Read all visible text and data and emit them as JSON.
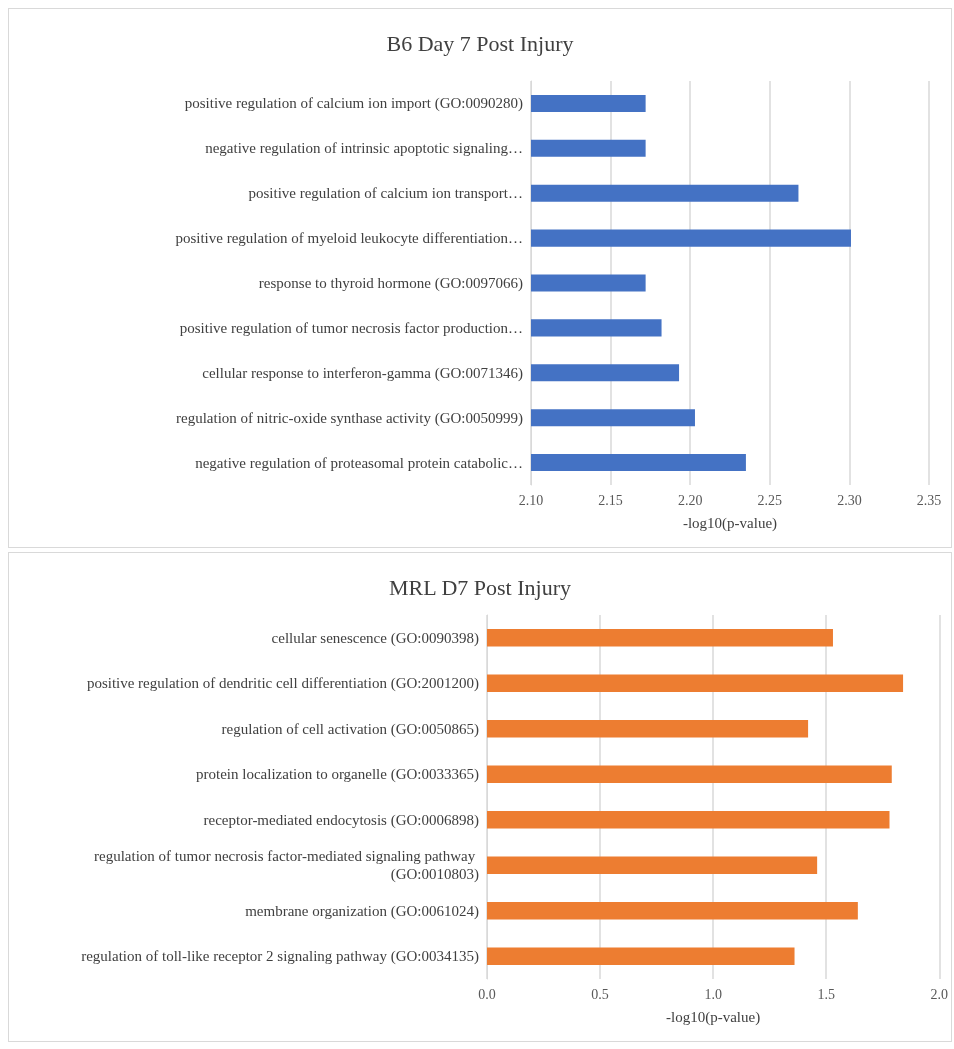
{
  "chart_data": [
    {
      "type": "bar",
      "orientation": "horizontal",
      "title": "B6 Day 7 Post Injury",
      "xlabel": "-log10(p-value)",
      "categories": [
        "positive regulation of calcium ion import (GO:0090280)",
        "negative regulation of intrinsic apoptotic signaling…",
        "positive regulation of calcium ion transport…",
        "positive regulation of myeloid leukocyte differentiation…",
        "response to thyroid hormone (GO:0097066)",
        "positive regulation of tumor necrosis factor production…",
        "cellular response to interferon-gamma (GO:0071346)",
        "regulation of nitric-oxide synthase activity (GO:0050999)",
        "negative regulation of proteasomal protein catabolic…"
      ],
      "series": [
        {
          "color": "#4472c4",
          "values": [
            2.172,
            2.172,
            2.268,
            2.301,
            2.172,
            2.182,
            2.193,
            2.203,
            2.235
          ]
        }
      ],
      "xlim": [
        2.1,
        2.35
      ],
      "xticks": [
        {
          "value": 2.1,
          "label": "2.10"
        },
        2.15,
        {
          "value": 2.2,
          "label": "2.20"
        },
        2.25,
        {
          "value": 2.3,
          "label": "2.30"
        },
        2.35
      ],
      "grid": "x"
    },
    {
      "type": "bar",
      "orientation": "horizontal",
      "title": "MRL D7 Post Injury",
      "xlabel": "-log10(p-value)",
      "categories": [
        "cellular senescence (GO:0090398)",
        "positive regulation of dendritic cell differentiation (GO:2001200)",
        "regulation of cell activation (GO:0050865)",
        "protein localization to organelle (GO:0033365)",
        "receptor-mediated endocytosis (GO:0006898)",
        "regulation of tumor necrosis factor-mediated signaling pathway (GO:0010803)",
        "membrane organization (GO:0061024)",
        "regulation of toll-like receptor 2 signaling pathway (GO:0034135)"
      ],
      "series": [
        {
          "color": "#ed7d31",
          "values": [
            1.53,
            1.84,
            1.42,
            1.79,
            1.78,
            1.46,
            1.64,
            1.36
          ]
        }
      ],
      "xlim": [
        0,
        2
      ],
      "xticks": [
        {
          "value": 0,
          "label": "0.0"
        },
        0.5,
        {
          "value": 1,
          "label": "1.0"
        },
        1.5,
        {
          "value": 2,
          "label": "2.0"
        }
      ],
      "grid": "x"
    }
  ]
}
